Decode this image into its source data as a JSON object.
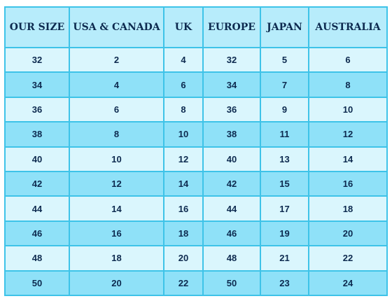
{
  "table": {
    "headers": [
      "OUR SIZE",
      "USA & CANADA",
      "UK",
      "EUROPE",
      "JAPAN",
      "AUSTRALIA"
    ],
    "rows": [
      [
        "32",
        "2",
        "4",
        "32",
        "5",
        "6"
      ],
      [
        "34",
        "4",
        "6",
        "34",
        "7",
        "8"
      ],
      [
        "36",
        "6",
        "8",
        "36",
        "9",
        "10"
      ],
      [
        "38",
        "8",
        "10",
        "38",
        "11",
        "12"
      ],
      [
        "40",
        "10",
        "12",
        "40",
        "13",
        "14"
      ],
      [
        "42",
        "12",
        "14",
        "42",
        "15",
        "16"
      ],
      [
        "44",
        "14",
        "16",
        "44",
        "17",
        "18"
      ],
      [
        "46",
        "16",
        "18",
        "46",
        "19",
        "20"
      ],
      [
        "48",
        "18",
        "20",
        "48",
        "21",
        "22"
      ],
      [
        "50",
        "20",
        "22",
        "50",
        "23",
        "24"
      ]
    ]
  },
  "colors": {
    "border": "#3ec3e8",
    "header_bg": "#b7ecfb",
    "row_light": "#daf6fd",
    "row_dark": "#8fe1f8",
    "text": "#0d2a4f"
  }
}
